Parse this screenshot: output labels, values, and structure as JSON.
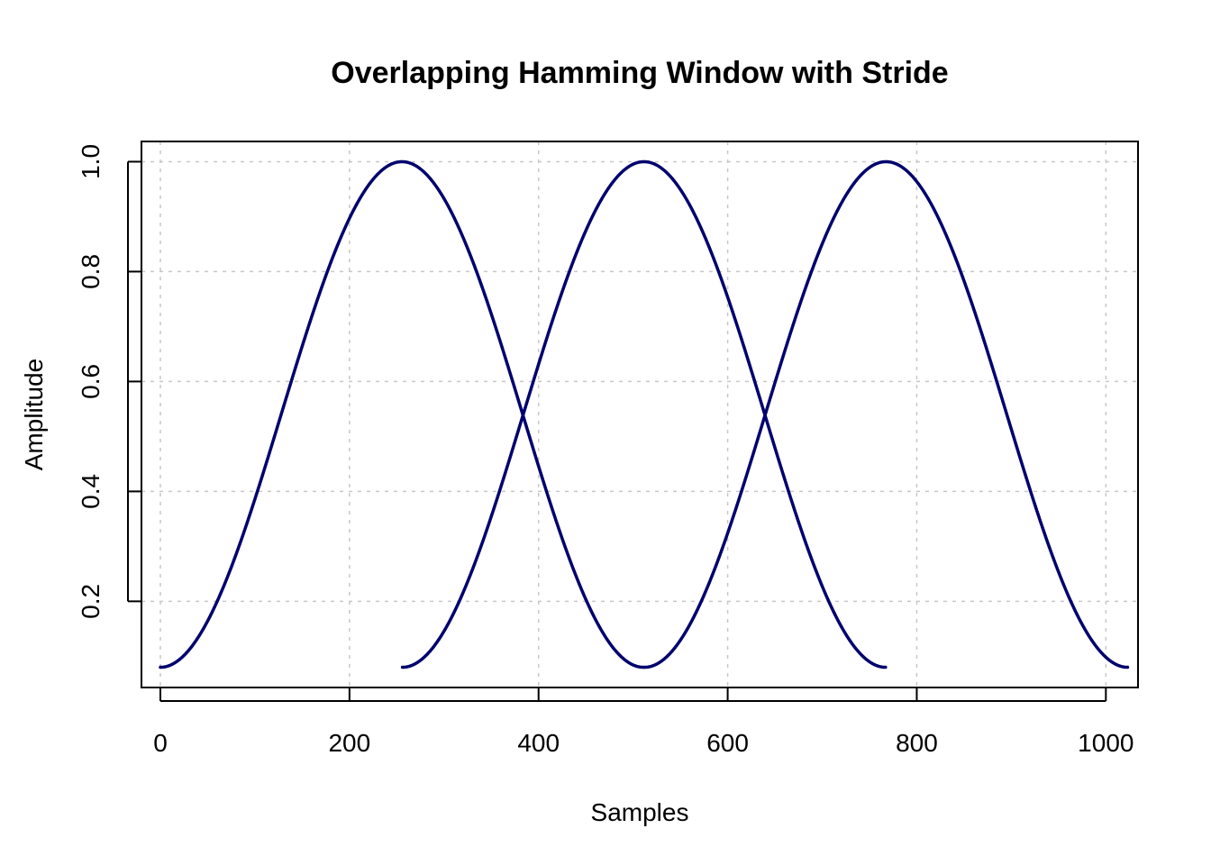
{
  "chart_data": {
    "type": "line",
    "title": "Overlapping Hamming Window with Stride",
    "xlabel": "Samples",
    "ylabel": "Amplitude",
    "xlim": [
      -20,
      1034
    ],
    "ylim": [
      0.0432,
      1.0368
    ],
    "x_ticks": [
      "0",
      "200",
      "400",
      "600",
      "800",
      "1000"
    ],
    "y_ticks": [
      "0.2",
      "0.4",
      "0.6",
      "0.8",
      "1.0"
    ],
    "grid": true,
    "line_color": "#00006E",
    "grid_color": "#C8C8C8",
    "window": {
      "name": "Hamming",
      "length": 512,
      "stride": 256
    },
    "series": [
      {
        "start": 0,
        "end": 511,
        "peak_x": 255.5,
        "min_y": 0.08,
        "max_y": 1.0
      },
      {
        "start": 256,
        "end": 767,
        "peak_x": 511.5,
        "min_y": 0.08,
        "max_y": 1.0
      },
      {
        "start": 512,
        "end": 1023,
        "peak_x": 767.5,
        "min_y": 0.08,
        "max_y": 1.0
      }
    ]
  }
}
